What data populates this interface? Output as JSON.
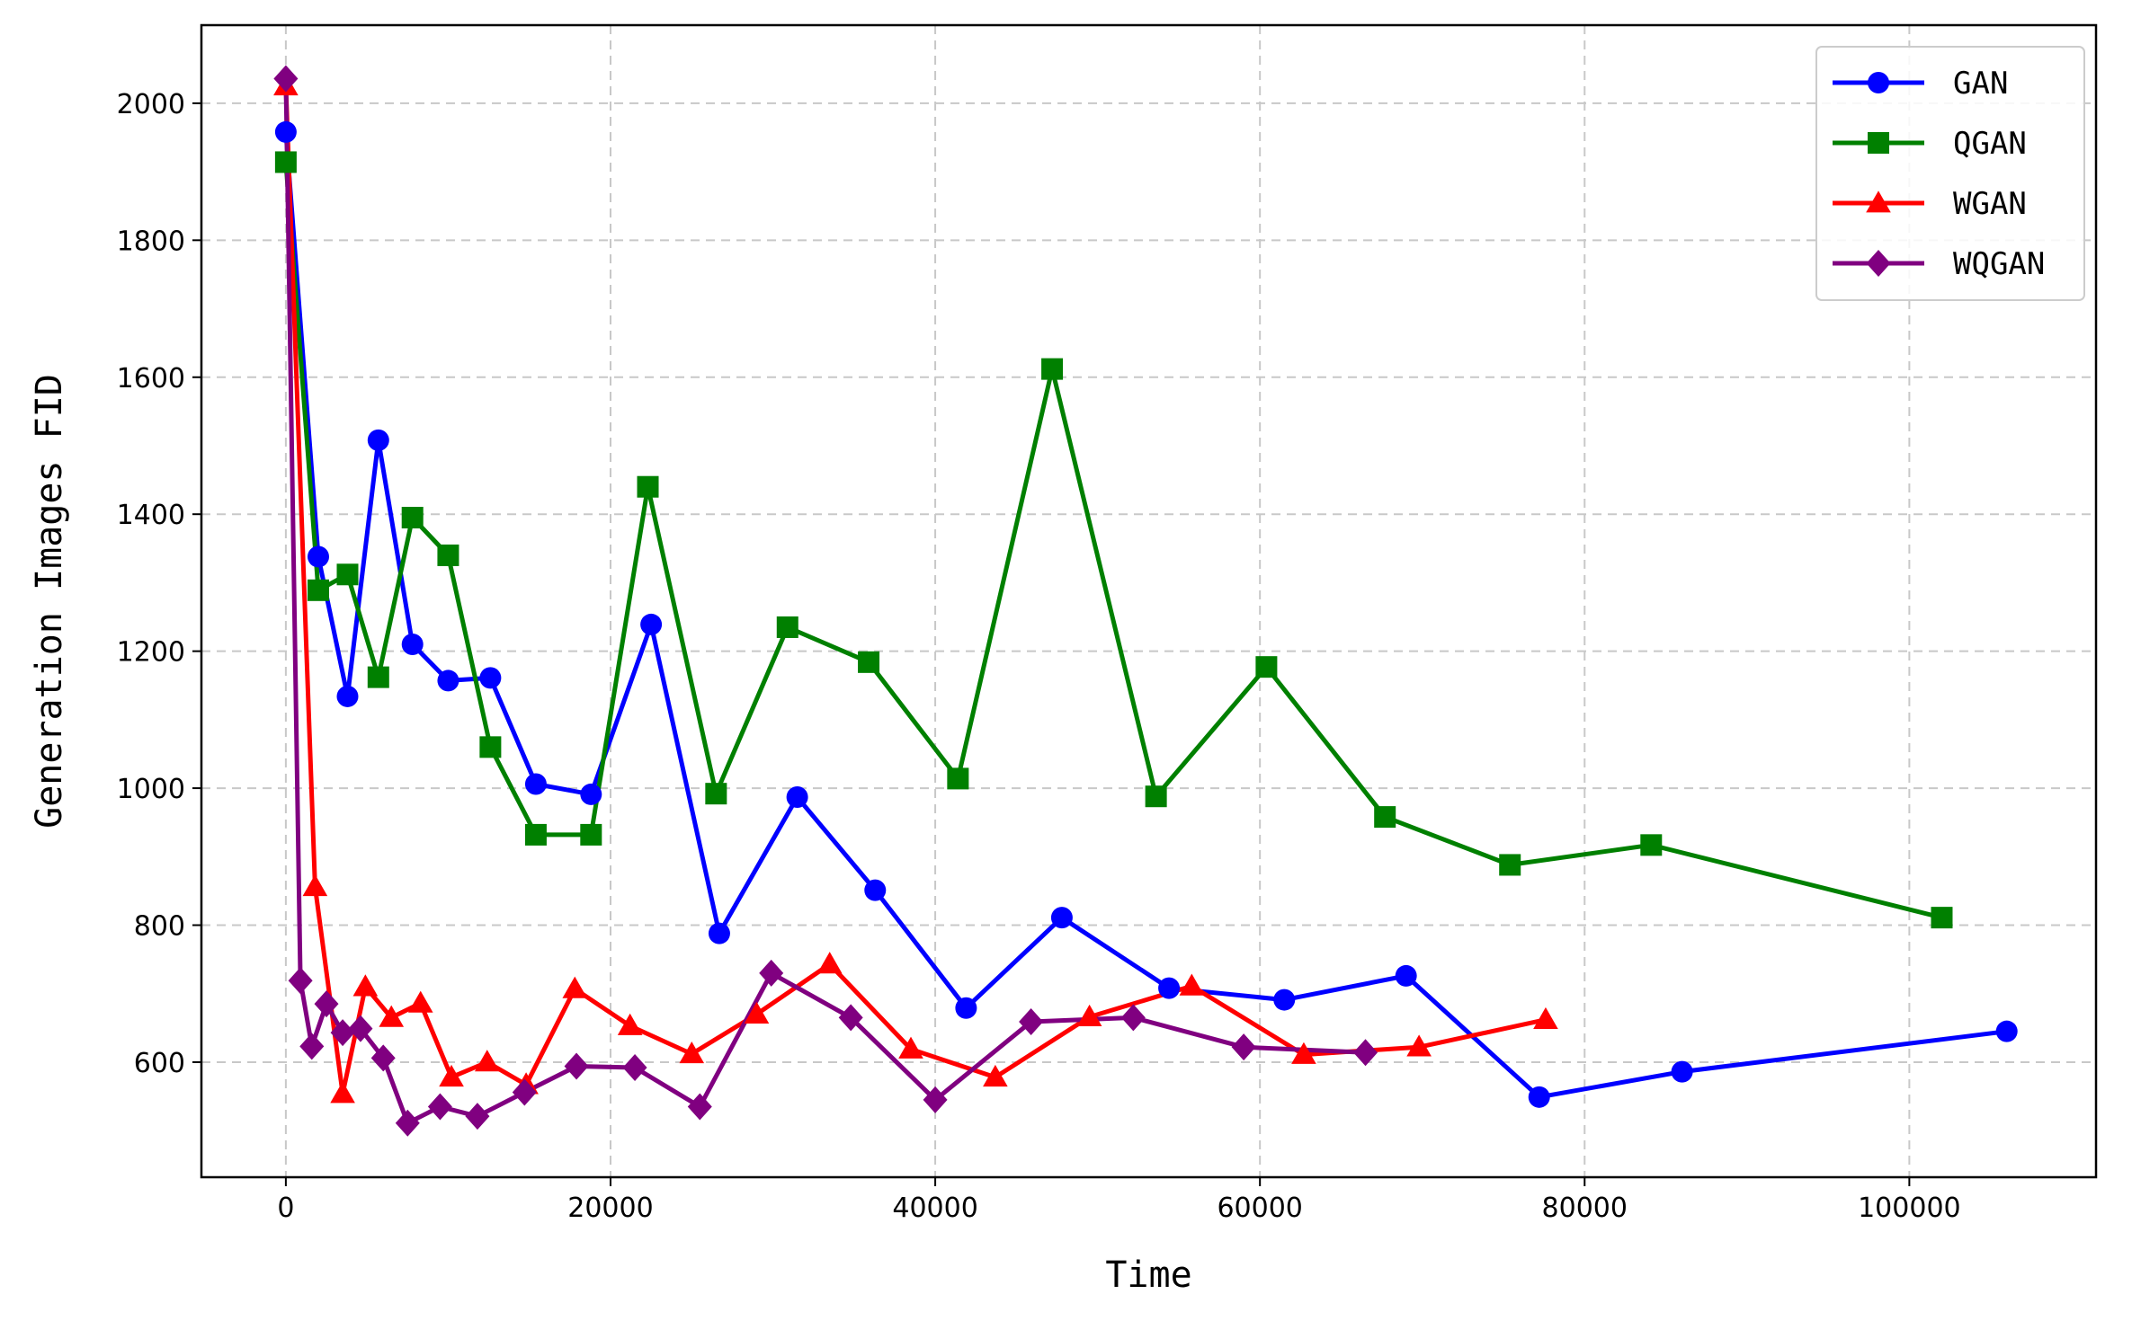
{
  "chart_data": {
    "type": "line",
    "xlabel": "Time",
    "ylabel": "Generation Images FID",
    "xlim": [
      -5200,
      111500
    ],
    "ylim": [
      432,
      2114
    ],
    "xticks": [
      0,
      20000,
      40000,
      60000,
      80000,
      100000
    ],
    "yticks": [
      600,
      800,
      1000,
      1200,
      1400,
      1600,
      1800,
      2000
    ],
    "grid": true,
    "legend_position": "top-right",
    "series": [
      {
        "name": "GAN",
        "color": "#0000ff",
        "marker": "circle",
        "points": [
          [
            0,
            1958
          ],
          [
            2000,
            1338
          ],
          [
            3800,
            1134
          ],
          [
            5700,
            1508
          ],
          [
            7800,
            1210
          ],
          [
            10000,
            1157
          ],
          [
            12600,
            1161
          ],
          [
            15400,
            1006
          ],
          [
            18800,
            991
          ],
          [
            22500,
            1239
          ],
          [
            26700,
            788
          ],
          [
            31500,
            987
          ],
          [
            36300,
            851
          ],
          [
            41900,
            679
          ],
          [
            47800,
            811
          ],
          [
            54400,
            708
          ],
          [
            61500,
            691
          ],
          [
            69000,
            726
          ],
          [
            77200,
            549
          ],
          [
            86000,
            586
          ],
          [
            106000,
            645
          ]
        ]
      },
      {
        "name": "QGAN",
        "color": "#008000",
        "marker": "square",
        "points": [
          [
            0,
            1914
          ],
          [
            2000,
            1289
          ],
          [
            3800,
            1312
          ],
          [
            5700,
            1162
          ],
          [
            7800,
            1395
          ],
          [
            10000,
            1340
          ],
          [
            12600,
            1060
          ],
          [
            15400,
            932
          ],
          [
            18800,
            932
          ],
          [
            22300,
            1440
          ],
          [
            26500,
            992
          ],
          [
            30900,
            1235
          ],
          [
            35900,
            1184
          ],
          [
            41400,
            1014
          ],
          [
            47200,
            1612
          ],
          [
            53600,
            988
          ],
          [
            60400,
            1177
          ],
          [
            67700,
            958
          ],
          [
            75400,
            888
          ],
          [
            84100,
            917
          ],
          [
            102000,
            811
          ]
        ]
      },
      {
        "name": "WGAN",
        "color": "#ff0000",
        "marker": "triangle",
        "points": [
          [
            0,
            2025
          ],
          [
            1800,
            856
          ],
          [
            3500,
            554
          ],
          [
            4900,
            710
          ],
          [
            6500,
            665
          ],
          [
            8300,
            686
          ],
          [
            10200,
            578
          ],
          [
            12400,
            600
          ],
          [
            14800,
            567
          ],
          [
            17800,
            707
          ],
          [
            21200,
            653
          ],
          [
            25000,
            612
          ],
          [
            29000,
            670
          ],
          [
            33500,
            743
          ],
          [
            38500,
            619
          ],
          [
            43700,
            578
          ],
          [
            49500,
            666
          ],
          [
            55800,
            711
          ],
          [
            62700,
            611
          ],
          [
            69800,
            622
          ],
          [
            77600,
            662
          ]
        ]
      },
      {
        "name": "WQGAN",
        "color": "#800080",
        "marker": "diamond",
        "points": [
          [
            0,
            2036
          ],
          [
            900,
            719
          ],
          [
            1600,
            623
          ],
          [
            2500,
            685
          ],
          [
            3500,
            643
          ],
          [
            4600,
            649
          ],
          [
            6000,
            606
          ],
          [
            7500,
            511
          ],
          [
            9500,
            535
          ],
          [
            11800,
            521
          ],
          [
            14700,
            556
          ],
          [
            17900,
            594
          ],
          [
            21500,
            592
          ],
          [
            25500,
            535
          ],
          [
            29900,
            730
          ],
          [
            34800,
            665
          ],
          [
            40000,
            545
          ],
          [
            45900,
            659
          ],
          [
            52200,
            665
          ],
          [
            59000,
            622
          ],
          [
            66500,
            614
          ]
        ]
      }
    ]
  }
}
